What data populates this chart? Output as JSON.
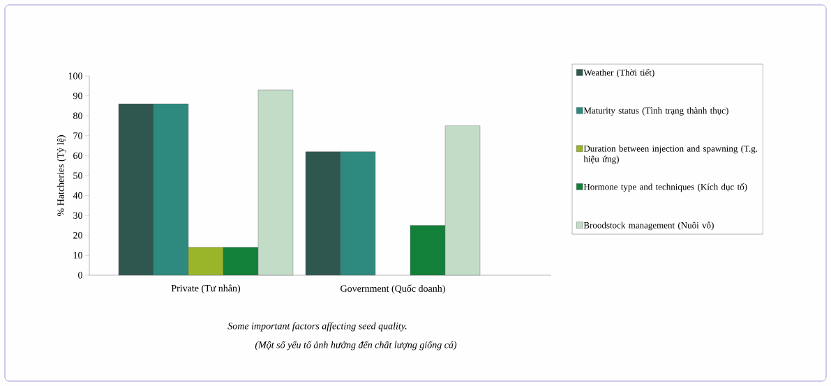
{
  "chart_data": {
    "type": "bar",
    "ylabel": "% Hatcheries (Tỷ lệ)",
    "categories": [
      "Private (Tư nhân)",
      "Government (Quốc doanh)"
    ],
    "series": [
      {
        "name": "Weather (Thời tiết)",
        "color": "#2f5750",
        "values": [
          86,
          62
        ]
      },
      {
        "name": "Maturity status (Tình trạng thành thục)",
        "color": "#2e8a7e",
        "values": [
          86,
          62
        ]
      },
      {
        "name": "Duration between injection and spawning (T.g. hiệu ứng)",
        "color": "#9ab52a",
        "values": [
          14,
          null
        ]
      },
      {
        "name": "Hormone type and techniques (Kích dục tố)",
        "color": "#13803a",
        "values": [
          14,
          25
        ]
      },
      {
        "name": "Broodstock management (Nuôi vỗ)",
        "color": "#c3dcc8",
        "values": [
          93,
          75
        ]
      }
    ],
    "ylim": [
      0,
      100
    ],
    "yticks": [
      0,
      10,
      20,
      30,
      40,
      50,
      60,
      70,
      80,
      90,
      100
    ],
    "grid": false,
    "legend": "right",
    "annotations": [
      "*Some important factors affecting seed quality.*",
      "*(Một số yếu tố ảnh hưởng đến chất lượng giống cá)*"
    ]
  }
}
